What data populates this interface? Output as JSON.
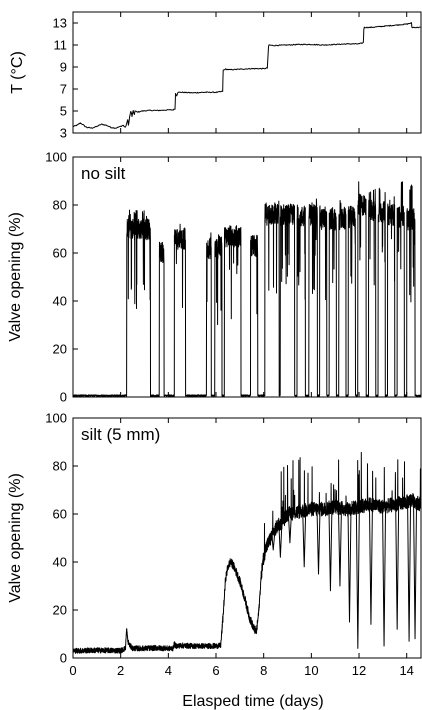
{
  "chart_data": [
    {
      "type": "line",
      "name": "temperature-panel",
      "title": "",
      "ylabel": "T (°C)",
      "ylim": [
        3,
        14
      ],
      "yticks": [
        3,
        5,
        7,
        9,
        11,
        13
      ],
      "xlim": [
        0,
        14.6
      ],
      "series": [
        {
          "x": [
            0,
            0.1,
            0.2,
            0.3,
            0.4,
            0.5,
            0.6,
            0.8,
            1.0,
            1.2,
            1.4,
            1.6,
            1.8,
            2.0,
            2.1,
            2.2,
            2.3,
            2.35,
            2.4,
            2.5,
            2.6,
            2.7,
            2.9,
            3.2,
            3.6,
            4.0,
            4.2,
            4.28,
            4.3,
            4.35,
            4.4,
            4.6,
            5.0,
            5.5,
            6.0,
            6.2,
            6.28,
            6.3,
            6.35,
            6.4,
            6.6,
            7.0,
            7.5,
            8.0,
            8.15,
            8.2,
            8.22,
            8.4,
            9.0,
            9.5,
            10.0,
            10.5,
            11.0,
            11.5,
            12.0,
            12.18,
            12.2,
            12.22,
            12.5,
            13.0,
            13.5,
            14.0,
            14.2,
            14.22,
            14.6
          ],
          "y": [
            3.6,
            3.65,
            3.75,
            3.9,
            3.8,
            3.6,
            3.5,
            3.45,
            3.6,
            3.8,
            3.7,
            3.5,
            3.45,
            3.6,
            3.7,
            3.5,
            4.2,
            3.9,
            4.8,
            4.6,
            5.0,
            4.9,
            5.0,
            5.05,
            5.05,
            5.1,
            5.1,
            5.2,
            6.6,
            6.4,
            6.7,
            6.7,
            6.65,
            6.7,
            6.7,
            6.75,
            6.8,
            8.7,
            8.75,
            8.8,
            8.75,
            8.8,
            8.85,
            8.85,
            8.9,
            10.8,
            11.0,
            10.95,
            11.0,
            11.05,
            11.05,
            11.0,
            11.05,
            11.1,
            11.1,
            11.2,
            12.4,
            12.6,
            12.6,
            12.7,
            12.8,
            12.9,
            13.0,
            12.6,
            12.6
          ]
        }
      ]
    },
    {
      "type": "line",
      "name": "valve-no-silt-panel",
      "annotation": "no silt",
      "ylabel": "Valve opening (%)",
      "ylim": [
        0,
        100
      ],
      "yticks": [
        0,
        20,
        40,
        60,
        80,
        100
      ],
      "xlim": [
        0,
        14.6
      ],
      "open_intervals": [
        {
          "start": 2.25,
          "end": 3.25,
          "level": 70,
          "peak": 78
        },
        {
          "start": 3.62,
          "end": 3.82,
          "level": 60,
          "peak": 65
        },
        {
          "start": 4.25,
          "end": 4.72,
          "level": 66,
          "peak": 72
        },
        {
          "start": 5.6,
          "end": 5.8,
          "level": 62,
          "peak": 70
        },
        {
          "start": 5.95,
          "end": 6.25,
          "level": 62,
          "peak": 68
        },
        {
          "start": 6.35,
          "end": 7.05,
          "level": 67,
          "peak": 71
        },
        {
          "start": 7.45,
          "end": 7.75,
          "level": 63,
          "peak": 67
        },
        {
          "start": 8.05,
          "end": 8.65,
          "level": 76,
          "peak": 82
        },
        {
          "start": 8.7,
          "end": 9.3,
          "level": 76,
          "peak": 81
        },
        {
          "start": 9.4,
          "end": 9.75,
          "level": 75,
          "peak": 80
        },
        {
          "start": 9.9,
          "end": 10.25,
          "level": 76,
          "peak": 83
        },
        {
          "start": 10.35,
          "end": 10.65,
          "level": 74,
          "peak": 80
        },
        {
          "start": 10.75,
          "end": 11.05,
          "level": 74,
          "peak": 80
        },
        {
          "start": 11.15,
          "end": 11.45,
          "level": 74,
          "peak": 82
        },
        {
          "start": 11.55,
          "end": 11.85,
          "level": 75,
          "peak": 78
        },
        {
          "start": 11.95,
          "end": 12.3,
          "level": 80,
          "peak": 92
        },
        {
          "start": 12.4,
          "end": 12.7,
          "level": 78,
          "peak": 88
        },
        {
          "start": 12.8,
          "end": 13.1,
          "level": 77,
          "peak": 88
        },
        {
          "start": 13.2,
          "end": 13.5,
          "level": 76,
          "peak": 84
        },
        {
          "start": 13.6,
          "end": 13.9,
          "level": 75,
          "peak": 90
        },
        {
          "start": 14.0,
          "end": 14.35,
          "level": 74,
          "peak": 89
        }
      ]
    },
    {
      "type": "line",
      "name": "valve-silt-panel",
      "annotation": "silt (5 mm)",
      "ylabel": "Valve opening (%)",
      "xlabel": "Elasped time (days)",
      "ylim": [
        0,
        100
      ],
      "yticks": [
        0,
        20,
        40,
        60,
        80,
        100
      ],
      "xlim": [
        0,
        14.6
      ],
      "xticks": [
        0,
        2,
        4,
        6,
        8,
        10,
        12,
        14
      ],
      "series": [
        {
          "x": [
            0,
            1.0,
            2.0,
            2.2,
            2.25,
            2.3,
            2.4,
            2.5,
            3.0,
            3.5,
            4.0,
            4.2,
            4.25,
            4.3,
            4.6,
            5.0,
            5.5,
            6.0,
            6.2,
            6.3,
            6.4,
            6.5,
            6.6,
            6.7,
            6.8,
            7.0,
            7.2,
            7.4,
            7.6,
            7.7,
            7.8,
            7.9,
            8.0,
            8.1,
            8.3,
            8.5,
            8.8,
            9.0,
            9.5,
            10.0,
            10.5,
            11.0,
            11.5,
            12.0,
            12.5,
            13.0,
            13.5,
            14.0,
            14.2,
            14.4,
            14.6
          ],
          "y": [
            3,
            3.2,
            3.1,
            4,
            12,
            7,
            5,
            4,
            4,
            4.2,
            4,
            4,
            6,
            5,
            5.2,
            5,
            5,
            5,
            5.2,
            18,
            33,
            38,
            40,
            39,
            37,
            32,
            25,
            17,
            12,
            11,
            20,
            35,
            42,
            46,
            50,
            54,
            57,
            60,
            61,
            62,
            62,
            63,
            62,
            63,
            64,
            63,
            64,
            65,
            66,
            65,
            64
          ]
        }
      ],
      "dips": [
        {
          "x": 8.4,
          "y": 45
        },
        {
          "x": 8.7,
          "y": 42
        },
        {
          "x": 9.1,
          "y": 48
        },
        {
          "x": 9.7,
          "y": 38
        },
        {
          "x": 10.3,
          "y": 35
        },
        {
          "x": 10.8,
          "y": 28
        },
        {
          "x": 11.2,
          "y": 30
        },
        {
          "x": 11.6,
          "y": 15
        },
        {
          "x": 11.95,
          "y": 4
        },
        {
          "x": 12.5,
          "y": 14
        },
        {
          "x": 13.05,
          "y": 5
        },
        {
          "x": 13.6,
          "y": 12
        },
        {
          "x": 14.1,
          "y": 7
        },
        {
          "x": 14.35,
          "y": 8
        }
      ]
    }
  ]
}
